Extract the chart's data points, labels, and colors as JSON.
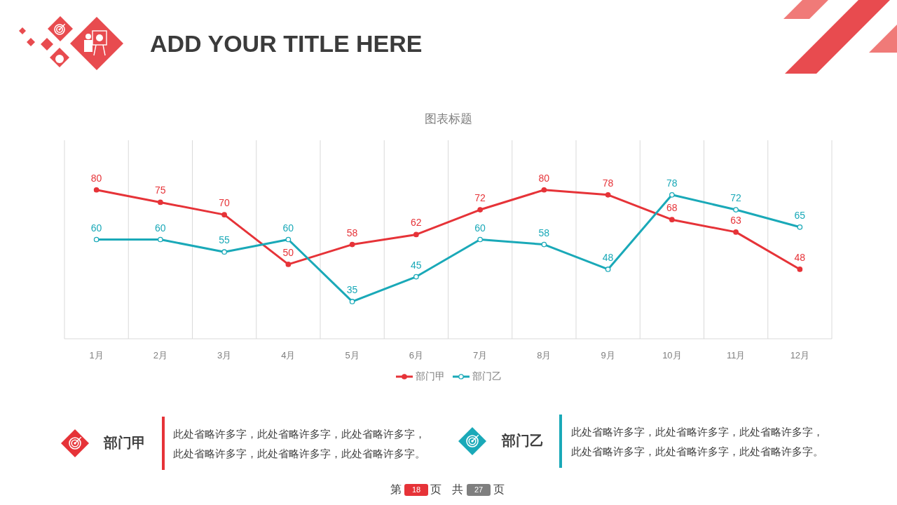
{
  "chart_data": {
    "type": "line",
    "title": "ADD YOUR TITLE HERE",
    "subtitle": "图表标题",
    "categories": [
      "1月",
      "2月",
      "3月",
      "4月",
      "5月",
      "6月",
      "7月",
      "8月",
      "9月",
      "10月",
      "11月",
      "12月"
    ],
    "series": [
      {
        "name": "部门甲",
        "color": "#e63338",
        "values": [
          80,
          75,
          70,
          50,
          58,
          62,
          72,
          80,
          78,
          68,
          63,
          48
        ]
      },
      {
        "name": "部门乙",
        "color": "#1aa9b8",
        "values": [
          60,
          60,
          55,
          60,
          35,
          45,
          60,
          58,
          48,
          78,
          72,
          65
        ]
      }
    ],
    "ylim": [
      20,
      100
    ],
    "tick_labels": "x",
    "grid": "x",
    "legend": "bottom",
    "marker": "circle",
    "line_style": "solid",
    "data_labels": true,
    "annotations": [
      "部门甲",
      "此处省略许多字，此处省略许多字，此处省略许多字，此处省略许多字，此处省略许多字，此处省略许多字。",
      "部门乙",
      "此处省略许多字，此处省略许多字，此处省略许多字，此处省略许多字，此处省略许多字，此处省略许多字。",
      "第",
      "18",
      "页",
      "共",
      "27",
      "页"
    ]
  }
}
